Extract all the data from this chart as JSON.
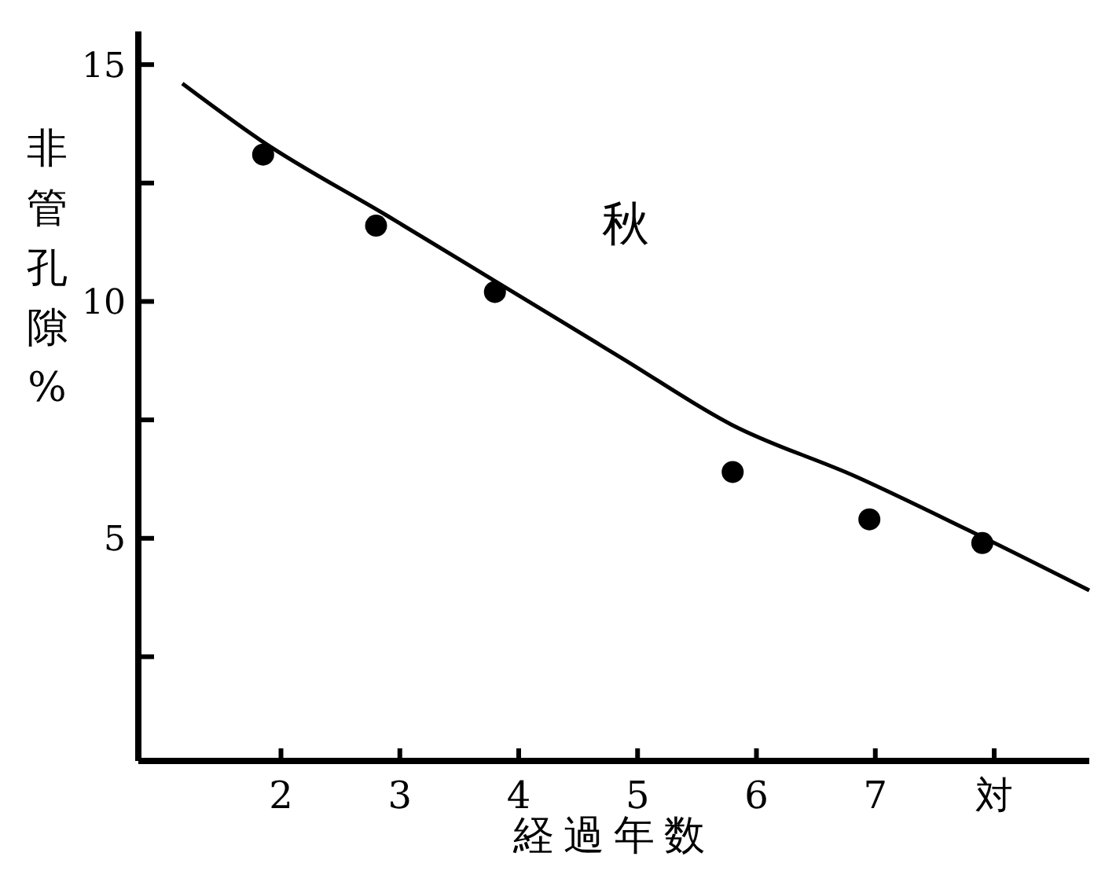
{
  "chart_data": {
    "type": "scatter",
    "xlabel": "経過年数",
    "ylabel": "非管孔隙 %",
    "annotations": [
      "秋"
    ],
    "xlim": [
      0.8,
      8.8
    ],
    "ylim": [
      0.3,
      15.7
    ],
    "xticks": [
      2,
      3,
      4,
      5,
      6,
      7,
      {
        "value": 8,
        "label": "対"
      }
    ],
    "yticks": [
      15,
      {
        "value": 12.5,
        "label": null
      },
      10,
      {
        "value": 7.5,
        "label": null
      },
      5,
      {
        "value": 2.5,
        "label": null
      }
    ],
    "marker": "circle",
    "grid": false,
    "series": [
      {
        "color": "#000000",
        "x": [
          1.85,
          2.8,
          3.8,
          5.8,
          6.95,
          7.9
        ],
        "values": [
          13.1,
          11.6,
          10.2,
          6.4,
          5.4,
          4.9
        ]
      },
      {
        "type": "line",
        "color": "#000000",
        "marker": "none",
        "x": [
          1.17,
          1.83,
          2.9,
          3.82,
          4.87,
          5.79,
          6.84,
          7.76,
          8.8
        ],
        "values": [
          14.6,
          13.4,
          11.8,
          10.4,
          8.8,
          7.4,
          6.3,
          5.2,
          3.9
        ]
      }
    ]
  }
}
